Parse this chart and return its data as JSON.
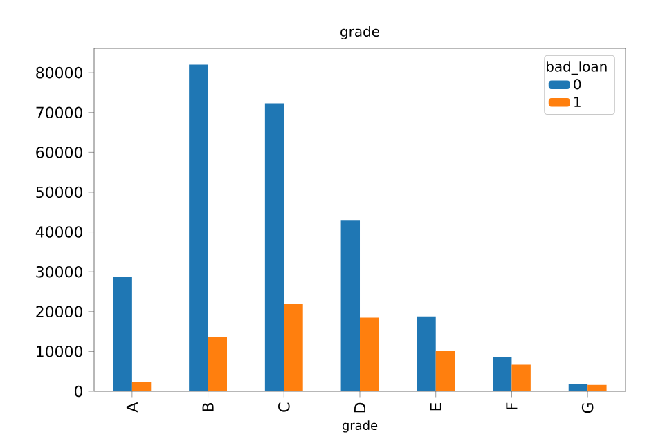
{
  "chart_data": {
    "type": "bar",
    "title": "grade",
    "xlabel": "grade",
    "legend_title": "bad_loan",
    "categories": [
      "A",
      "B",
      "C",
      "D",
      "E",
      "F",
      "G"
    ],
    "series": [
      {
        "name": "0",
        "color": "#1f77b4",
        "values": [
          28700,
          82000,
          72300,
          43000,
          18800,
          8500,
          1900
        ]
      },
      {
        "name": "1",
        "color": "#ff7f0e",
        "values": [
          2300,
          13700,
          22000,
          18500,
          10200,
          6700,
          1600
        ]
      }
    ],
    "ylim": [
      0,
      86100
    ],
    "yticks": [
      0,
      10000,
      20000,
      30000,
      40000,
      50000,
      60000,
      70000,
      80000
    ],
    "legend": "top right"
  }
}
